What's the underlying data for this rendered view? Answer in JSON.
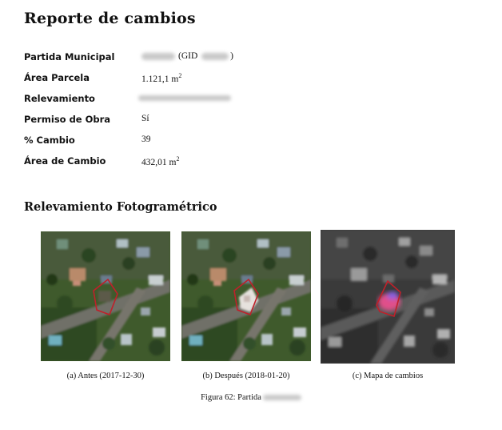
{
  "report": {
    "title": "Reporte de cambios",
    "rows": [
      {
        "label": "Partida Municipal",
        "value_prefix": "",
        "value_mid": "(GID",
        "value_suffix": ")"
      },
      {
        "label": "Área Parcela",
        "value": "1.121,1 m",
        "unit_sup": "2"
      },
      {
        "label": "Relevamiento"
      },
      {
        "label": "Permiso de Obra",
        "value": "Sí"
      },
      {
        "label": "% Cambio",
        "value": "39"
      },
      {
        "label": "Área de Cambio",
        "value": "432,01 m",
        "unit_sup": "2"
      }
    ]
  },
  "section": {
    "title": "Relevamiento Fotogramétrico"
  },
  "figures": [
    {
      "caption": "(a) Antes (2017-12-30)",
      "image": "aerial-before"
    },
    {
      "caption": "(b) Después (2018-01-20)",
      "image": "aerial-after"
    },
    {
      "caption": "(c) Mapa de cambios",
      "image": "change-map"
    }
  ],
  "figure_caption": "Figura 62: Partida",
  "colors": {
    "parcel_outline": "#c0202a",
    "change_highlight": "#e0508a",
    "vegetation": "#3f5a2c"
  }
}
